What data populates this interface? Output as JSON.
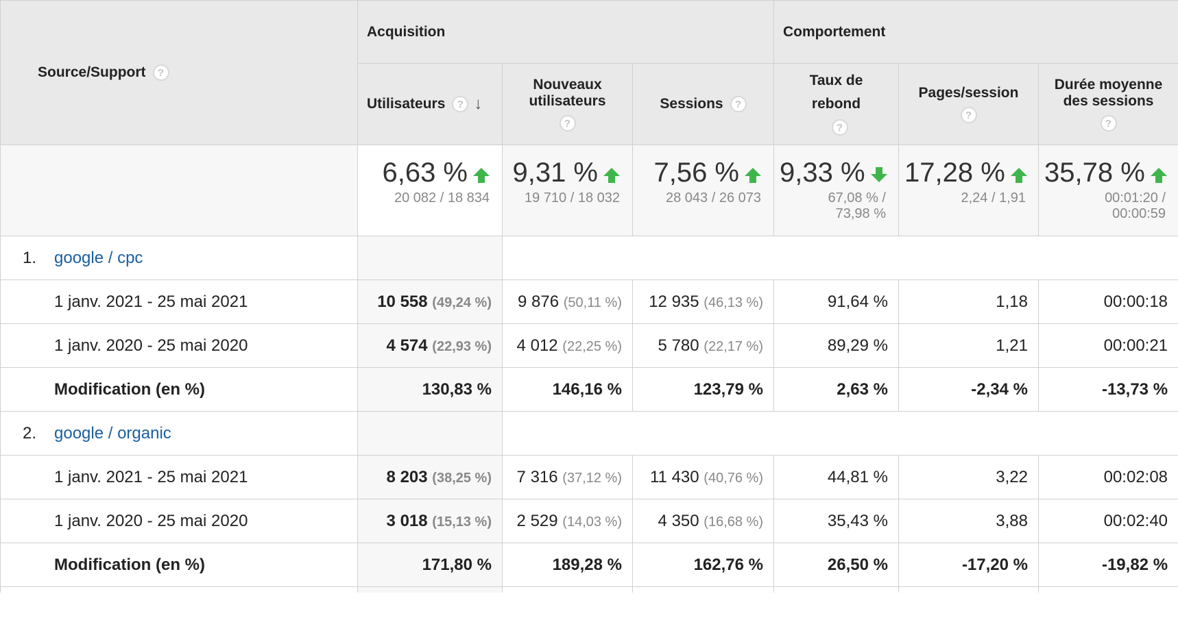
{
  "header": {
    "source_label": "Source/Support",
    "acquisition_label": "Acquisition",
    "behavior_label": "Comportement",
    "help_glyph": "?",
    "sort_glyph": "↓",
    "columns": [
      {
        "label": "Utilisateurs"
      },
      {
        "label": "Nouveaux utilisateurs"
      },
      {
        "label": "Sessions"
      },
      {
        "label": "Taux de rebond"
      },
      {
        "label": "Pages/session"
      },
      {
        "label": "Durée moyenne des sessions"
      }
    ]
  },
  "summary": [
    {
      "pct": "6,63 %",
      "trend": "up",
      "compare": "20 082 / 18 834"
    },
    {
      "pct": "9,31 %",
      "trend": "up",
      "compare": "19 710 / 18 032"
    },
    {
      "pct": "7,56 %",
      "trend": "up",
      "compare": "28 043 / 26 073"
    },
    {
      "pct": "9,33 %",
      "trend": "down",
      "compare_line1": "67,08 % /",
      "compare_line2": "73,98 %"
    },
    {
      "pct": "17,28 %",
      "trend": "up",
      "compare": "2,24 / 1,91"
    },
    {
      "pct": "35,78 %",
      "trend": "up",
      "compare_line1": "00:01:20 /",
      "compare_line2": "00:00:59"
    }
  ],
  "trend_color": "#3fb54c",
  "link_color": "#1a5fa0",
  "groups": [
    {
      "index": "1.",
      "name": "google / cpc",
      "rows": [
        {
          "period": "1 janv. 2021 - 25 mai 2021",
          "users": "10 558",
          "users_share": "(49,24 %)",
          "new_users": "9 876",
          "new_users_share": "(50,11 %)",
          "sessions": "12 935",
          "sessions_share": "(46,13 %)",
          "bounce": "91,64 %",
          "pages": "1,18",
          "duration": "00:00:18"
        },
        {
          "period": "1 janv. 2020 - 25 mai 2020",
          "users": "4 574",
          "users_share": "(22,93 %)",
          "new_users": "4 012",
          "new_users_share": "(22,25 %)",
          "sessions": "5 780",
          "sessions_share": "(22,17 %)",
          "bounce": "89,29 %",
          "pages": "1,21",
          "duration": "00:00:21"
        }
      ],
      "modification": {
        "label": "Modification (en %)",
        "users": "130,83 %",
        "new_users": "146,16 %",
        "sessions": "123,79 %",
        "bounce": "2,63 %",
        "pages": "-2,34 %",
        "duration": "-13,73 %"
      }
    },
    {
      "index": "2.",
      "name": "google / organic",
      "rows": [
        {
          "period": "1 janv. 2021 - 25 mai 2021",
          "users": "8 203",
          "users_share": "(38,25 %)",
          "new_users": "7 316",
          "new_users_share": "(37,12 %)",
          "sessions": "11 430",
          "sessions_share": "(40,76 %)",
          "bounce": "44,81 %",
          "pages": "3,22",
          "duration": "00:02:08"
        },
        {
          "period": "1 janv. 2020 - 25 mai 2020",
          "users": "3 018",
          "users_share": "(15,13 %)",
          "new_users": "2 529",
          "new_users_share": "(14,03 %)",
          "sessions": "4 350",
          "sessions_share": "(16,68 %)",
          "bounce": "35,43 %",
          "pages": "3,88",
          "duration": "00:02:40"
        }
      ],
      "modification": {
        "label": "Modification (en %)",
        "users": "171,80 %",
        "new_users": "189,28 %",
        "sessions": "162,76 %",
        "bounce": "26,50 %",
        "pages": "-17,20 %",
        "duration": "-19,82 %"
      }
    }
  ]
}
